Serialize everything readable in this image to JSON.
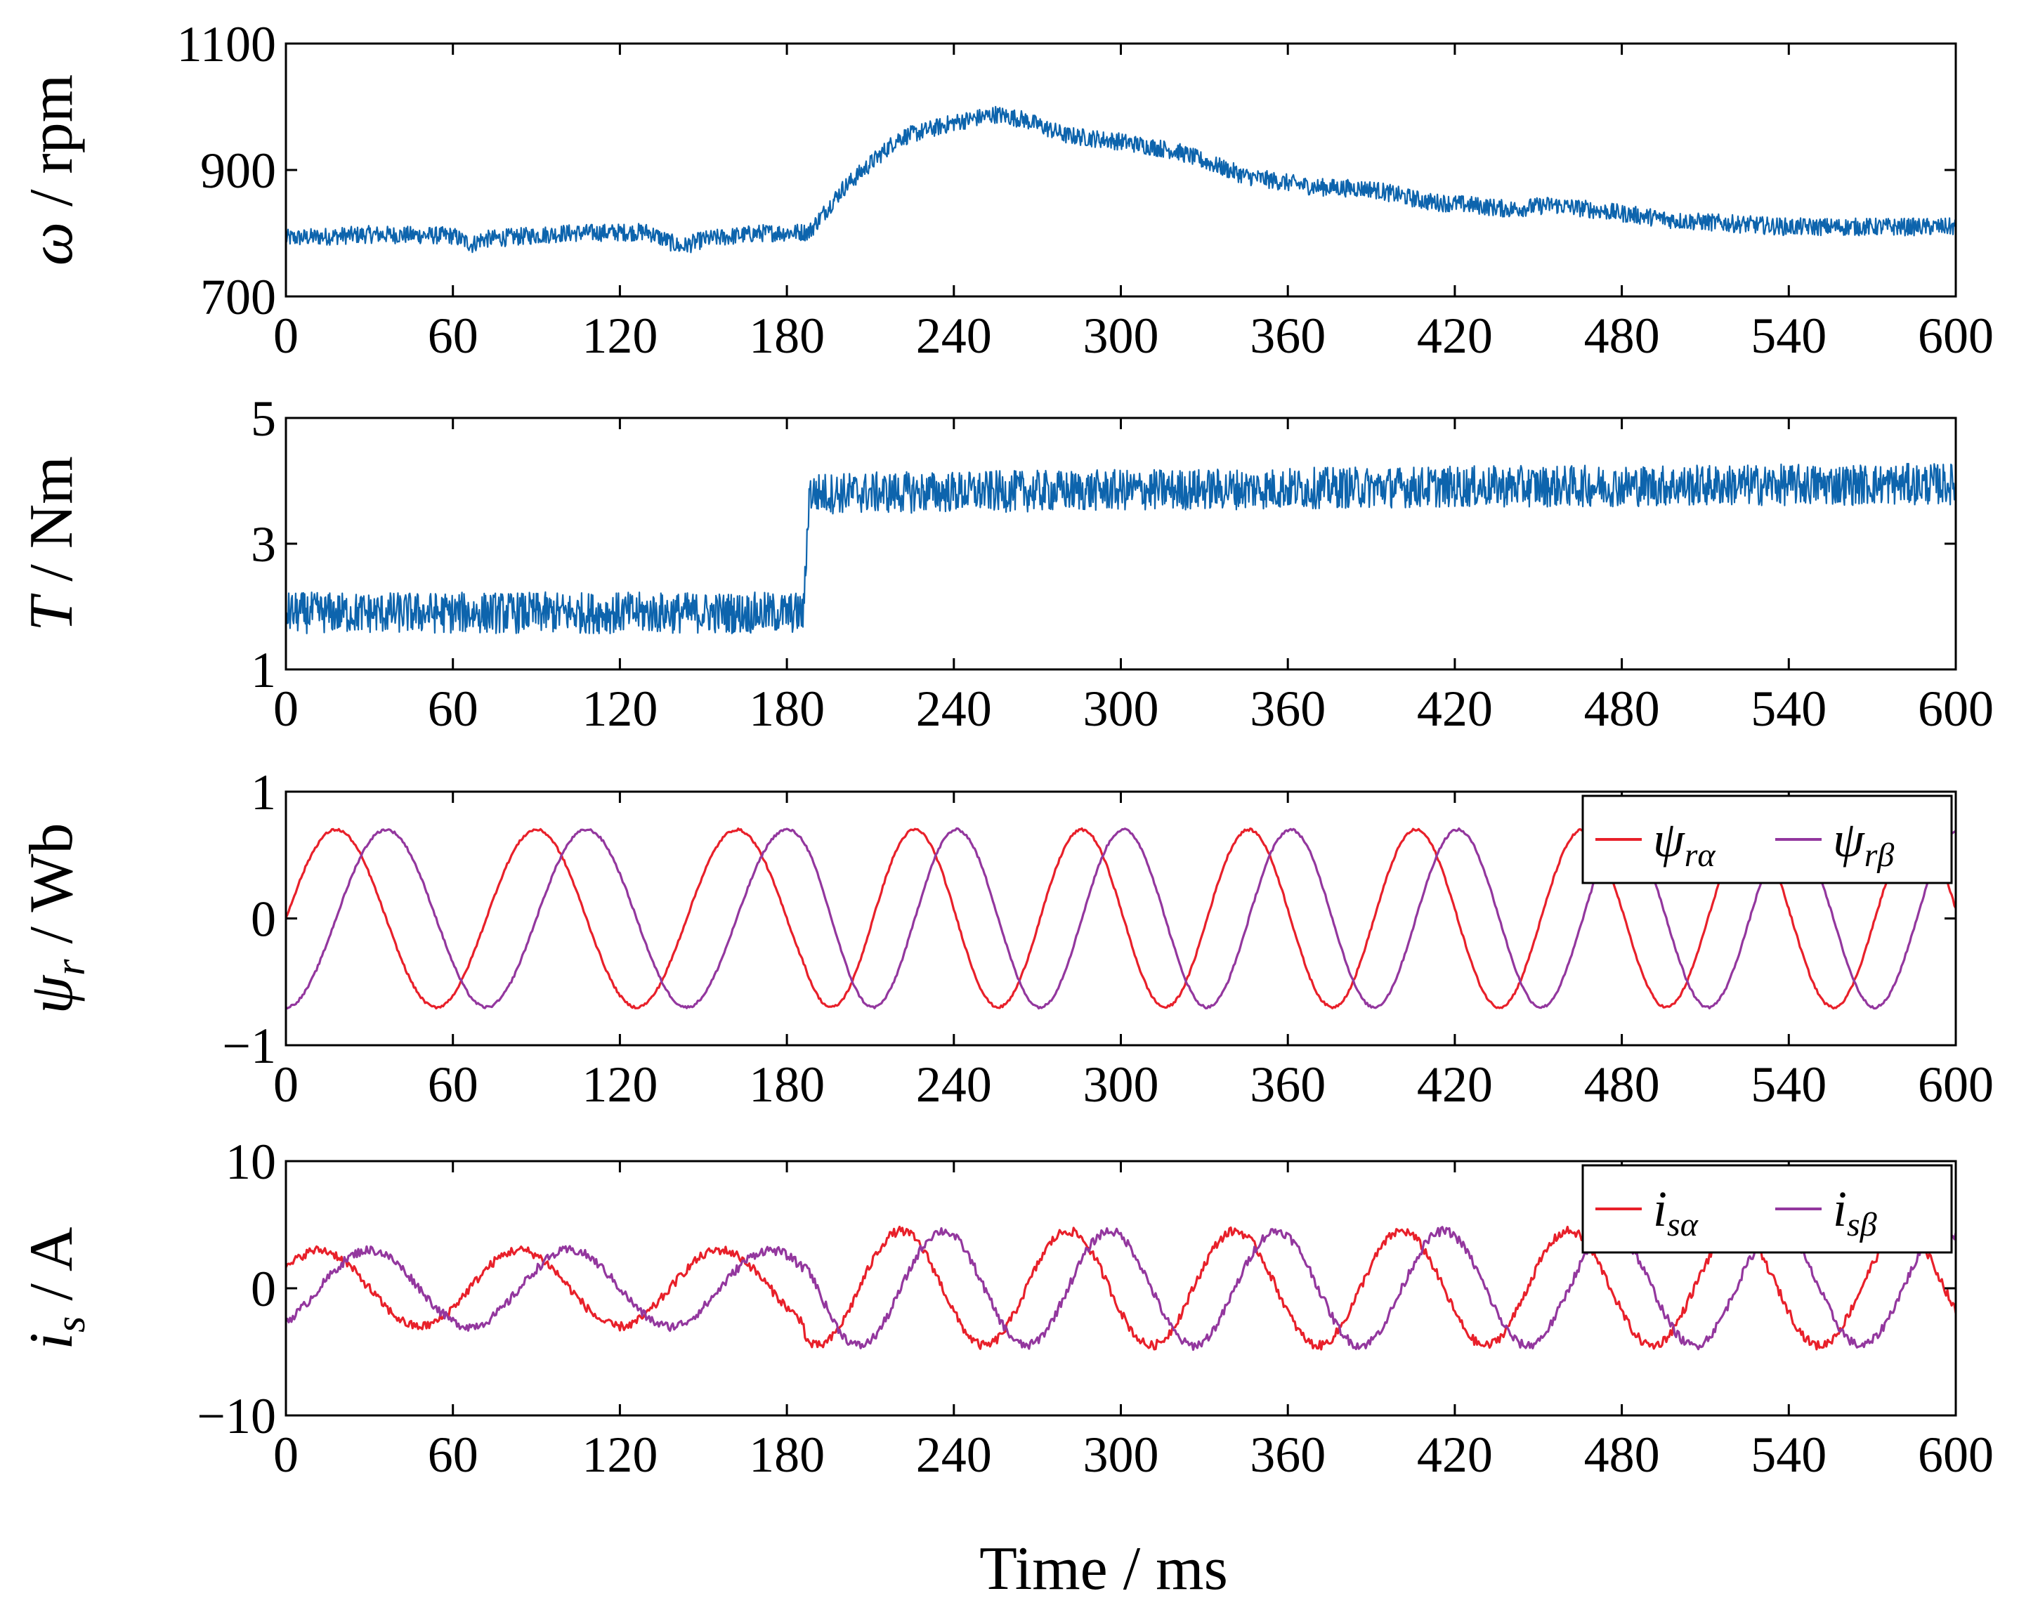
{
  "figure": {
    "xlabel": "Time / ms"
  },
  "chart_data": [
    {
      "type": "line",
      "ylabel_sym": "ω",
      "ylabel_unit": " / rpm",
      "xlim": [
        0,
        600
      ],
      "ylim": [
        700,
        1100
      ],
      "xticks": [
        0,
        60,
        120,
        180,
        240,
        300,
        360,
        420,
        480,
        540,
        600
      ],
      "yticks": [
        700,
        900,
        1100
      ],
      "ytick_labels": [
        "700",
        "900",
        "1100"
      ],
      "legend": null,
      "series": [
        {
          "name": "ω",
          "color": "#0d64ad",
          "noise": 14,
          "keypoints": [
            [
              0,
              792
            ],
            [
              30,
              798
            ],
            [
              60,
              796
            ],
            [
              67,
              782
            ],
            [
              70,
              790
            ],
            [
              100,
              800
            ],
            [
              130,
              802
            ],
            [
              142,
              778
            ],
            [
              150,
              790
            ],
            [
              170,
              800
            ],
            [
              188,
              802
            ],
            [
              200,
              870
            ],
            [
              220,
              950
            ],
            [
              240,
              975
            ],
            [
              255,
              988
            ],
            [
              265,
              980
            ],
            [
              280,
              955
            ],
            [
              300,
              945
            ],
            [
              320,
              930
            ],
            [
              345,
              890
            ],
            [
              370,
              873
            ],
            [
              390,
              870
            ],
            [
              410,
              850
            ],
            [
              425,
              845
            ],
            [
              440,
              838
            ],
            [
              455,
              845
            ],
            [
              470,
              837
            ],
            [
              500,
              820
            ],
            [
              540,
              810
            ],
            [
              600,
              810
            ]
          ]
        }
      ]
    },
    {
      "type": "line",
      "ylabel_sym": "T",
      "ylabel_unit": " / Nm",
      "xlim": [
        0,
        600
      ],
      "ylim": [
        1,
        5
      ],
      "xticks": [
        0,
        60,
        120,
        180,
        240,
        300,
        360,
        420,
        480,
        540,
        600
      ],
      "yticks": [
        1,
        3,
        5
      ],
      "ytick_labels": [
        "1",
        "3",
        "5"
      ],
      "legend": null,
      "series": [
        {
          "name": "T",
          "color": "#0d64ad",
          "noise": 0.33,
          "keypoints": [
            [
              0,
              1.9
            ],
            [
              186,
              1.9
            ],
            [
              188,
              3.8
            ],
            [
              300,
              3.85
            ],
            [
              400,
              3.9
            ],
            [
              600,
              3.95
            ]
          ]
        }
      ]
    },
    {
      "type": "line",
      "ylabel_sym": "ψ",
      "ylabel_sub": "r",
      "ylabel_unit": " / Wb",
      "xlim": [
        0,
        600
      ],
      "ylim": [
        -1,
        1
      ],
      "xticks": [
        0,
        60,
        120,
        180,
        240,
        300,
        360,
        420,
        480,
        540,
        600
      ],
      "yticks": [
        -1,
        0,
        1
      ],
      "ytick_labels": [
        "−1",
        "0",
        "1"
      ],
      "legend": "top-right",
      "series": [
        {
          "name": "ψ",
          "sub": "rα",
          "color": "#e8202a",
          "amplitude": 0.7,
          "period_before_ms": 72,
          "period_after_ms": 60,
          "switch_ms": 186,
          "phase_deg": 0,
          "noise": 0.01
        },
        {
          "name": "ψ",
          "sub": "rβ",
          "color": "#93379e",
          "amplitude": 0.7,
          "period_before_ms": 72,
          "period_after_ms": 60,
          "switch_ms": 186,
          "phase_deg": -90,
          "noise": 0.01
        }
      ]
    },
    {
      "type": "line",
      "ylabel_sym": "i",
      "ylabel_sub": "s",
      "ylabel_unit": " / A",
      "xlim": [
        0,
        600
      ],
      "ylim": [
        -10,
        10
      ],
      "xticks": [
        0,
        60,
        120,
        180,
        240,
        300,
        360,
        420,
        480,
        540,
        600
      ],
      "yticks": [
        -10,
        0,
        10
      ],
      "ytick_labels": [
        "−10",
        "0",
        "10"
      ],
      "legend": "top-right",
      "series": [
        {
          "name": "i",
          "sub": "sα",
          "color": "#e8202a",
          "amplitude_before": 3,
          "amplitude_after": 4.5,
          "period_before_ms": 72,
          "period_after_ms": 60,
          "switch_ms": 186,
          "phase_deg": 30,
          "noise": 0.35
        },
        {
          "name": "i",
          "sub": "sβ",
          "color": "#93379e",
          "amplitude_before": 3,
          "amplitude_after": 4.5,
          "period_before_ms": 72,
          "period_after_ms": 60,
          "switch_ms": 186,
          "phase_deg": -60,
          "noise": 0.35
        }
      ]
    }
  ]
}
